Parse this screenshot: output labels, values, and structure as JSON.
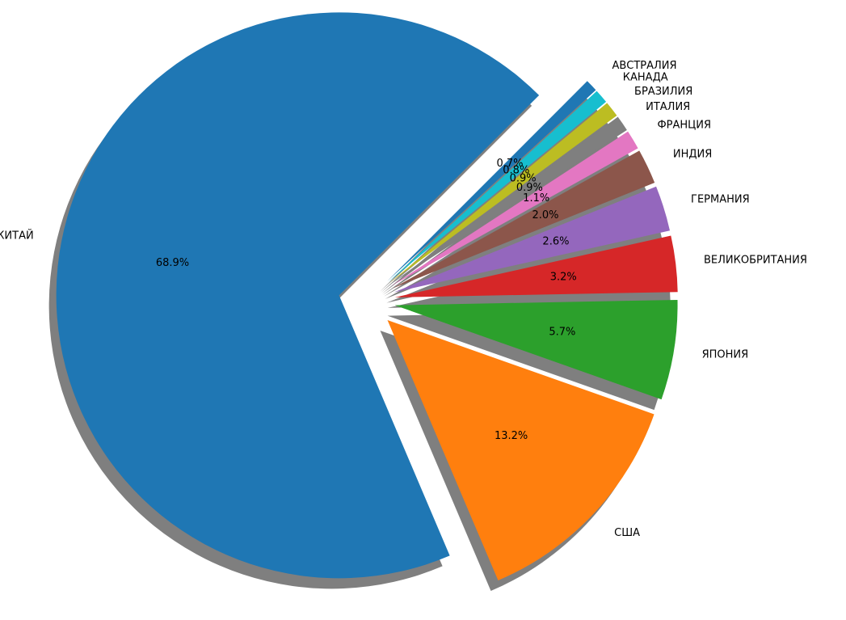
{
  "chart_data": {
    "type": "pie",
    "title": "",
    "categories": [
      "КИТАЙ",
      "США",
      "ЯПОНИЯ",
      "ВЕЛИКОБРИТАНИЯ",
      "ГЕРМАНИЯ",
      "ИНДИЯ",
      "ФРАНЦИЯ",
      "ИТАЛИЯ",
      "БРАЗИЛИЯ",
      "КАНАДА",
      "АВСТРАЛИЯ"
    ],
    "values": [
      68.9,
      13.2,
      5.7,
      3.2,
      2.6,
      2.0,
      1.1,
      0.9,
      0.9,
      0.8,
      0.7
    ],
    "percent_labels": [
      "68.9%",
      "13.2%",
      "5.7%",
      "3.2%",
      "2.6%",
      "2.0%",
      "1.1%",
      "0.9%",
      "0.9%",
      "0.8%",
      "0.7%"
    ],
    "colors": [
      "#1f77b4",
      "#ff7f0e",
      "#2ca02c",
      "#d62728",
      "#9467bd",
      "#8c564b",
      "#e377c2",
      "#7f7f7f",
      "#bcbd22",
      "#17becf",
      "#1f77b4"
    ],
    "exploded": true,
    "shadow": true,
    "legend": "none",
    "grid": false
  }
}
